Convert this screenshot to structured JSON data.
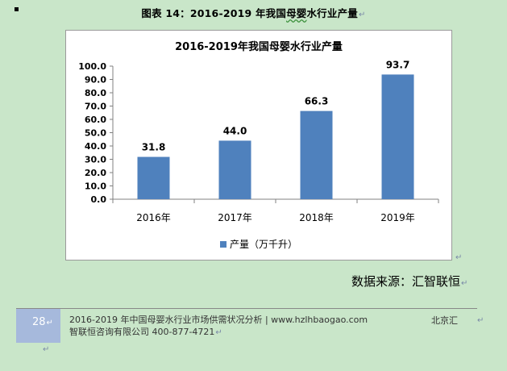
{
  "caption": {
    "prefix": "图表",
    "number": "14：2016-2019 年我国",
    "highlight": "母婴",
    "suffix": "水行业产量"
  },
  "chart_data": {
    "type": "bar",
    "title": "2016-2019年我国母婴水行业产量",
    "categories": [
      "2016年",
      "2017年",
      "2018年",
      "2019年"
    ],
    "series": [
      {
        "name": "产量（万千升）",
        "values": [
          31.8,
          44.0,
          66.3,
          93.7
        ],
        "labels": [
          "31.8",
          "44.0",
          "66.3",
          "93.7"
        ],
        "color": "#4f81bd"
      }
    ],
    "ylim": [
      0,
      100
    ],
    "yticks": [
      "0.0",
      "10.0",
      "20.0",
      "30.0",
      "40.0",
      "50.0",
      "60.0",
      "70.0",
      "80.0",
      "90.0",
      "100.0"
    ],
    "grid": false,
    "legend": "bottom"
  },
  "source": "数据来源：汇智联恒",
  "footer": {
    "page_number": "28",
    "line1": "2016-2019 年中国母婴水行业市场供需状况分析 | www.hzlhbaogao.com",
    "line2": "智联恒咨询有限公司  400-877-4721",
    "right": "北京汇"
  },
  "marks": {
    "paragraph": "↵"
  }
}
